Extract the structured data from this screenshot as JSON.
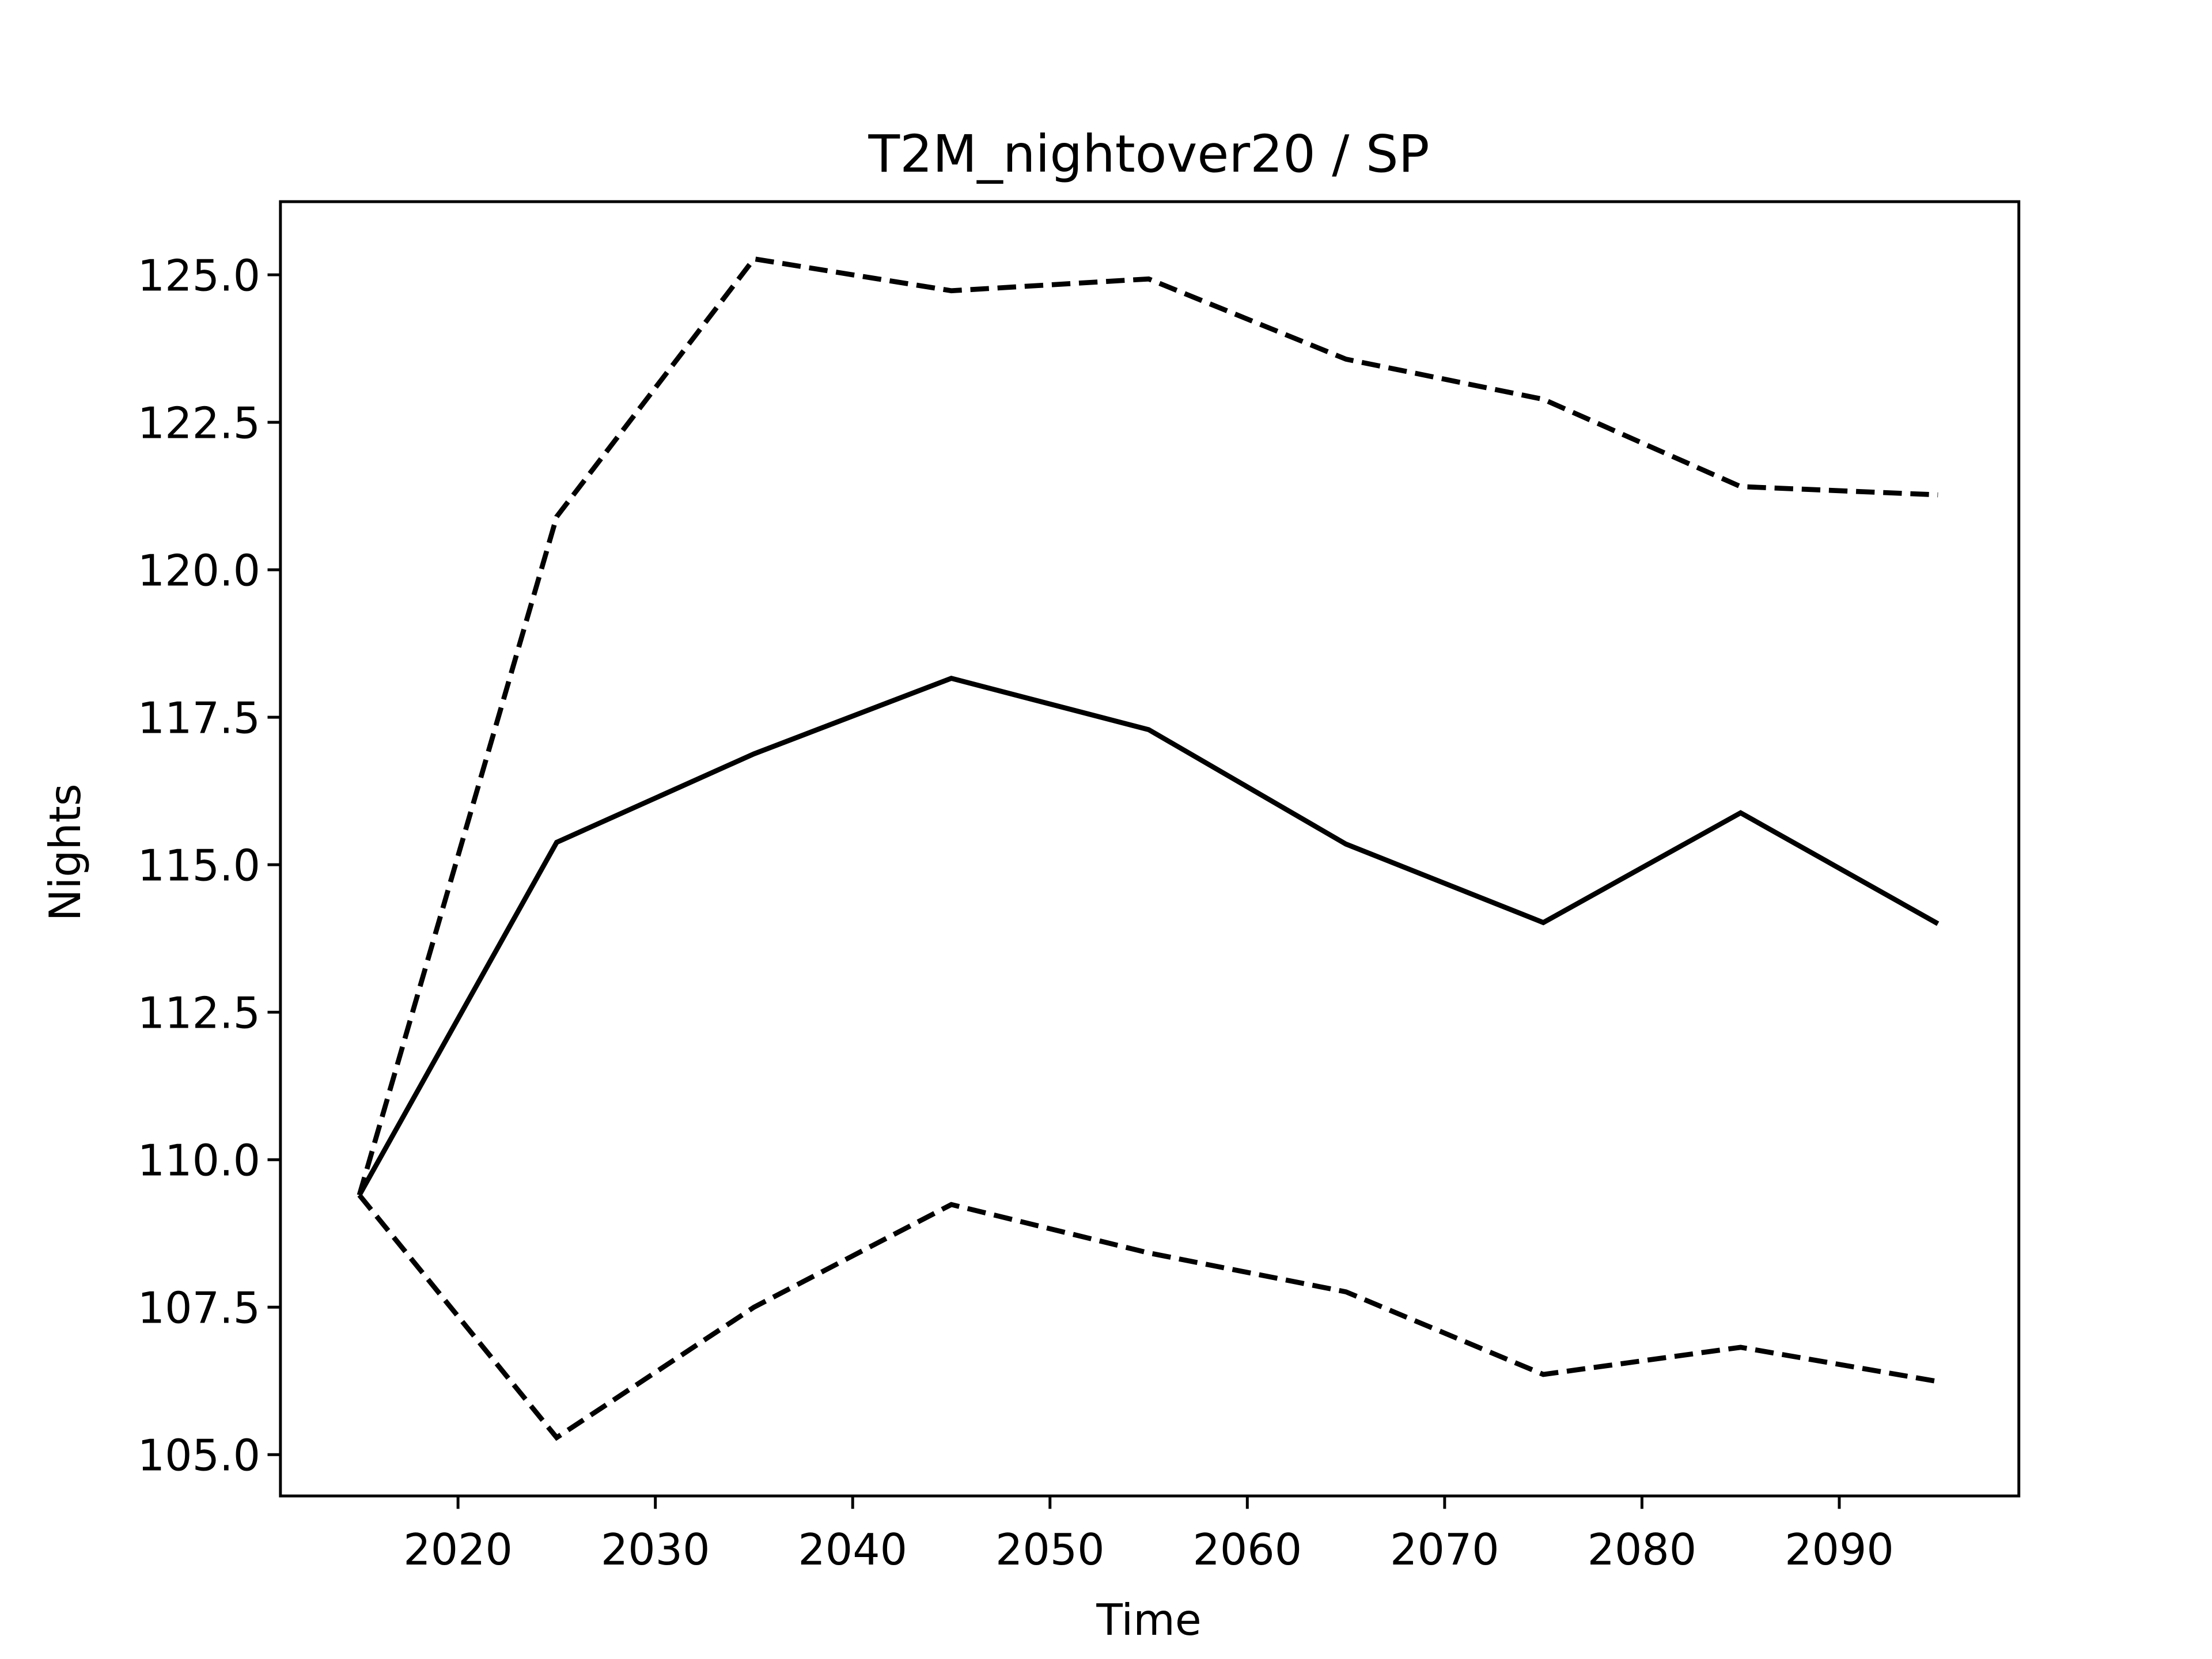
{
  "chart_data": {
    "type": "line",
    "title": "T2M_nightover20 / SP",
    "xlabel": "Time",
    "ylabel": "Nights",
    "x": [
      2015,
      2025,
      2035,
      2045,
      2055,
      2065,
      2075,
      2085,
      2095
    ],
    "series": [
      {
        "color": "#000000",
        "dashed": false,
        "values": [
          109.4,
          115.38,
          116.88,
          118.16,
          117.29,
          115.35,
          114.02,
          115.88,
          114.0
        ]
      },
      {
        "color": "#000000",
        "dashed": true,
        "values": [
          109.4,
          120.9,
          125.27,
          124.73,
          124.93,
          123.57,
          122.89,
          121.41,
          121.27
        ]
      },
      {
        "color": "#000000",
        "dashed": true,
        "values": [
          109.4,
          105.29,
          107.5,
          109.24,
          108.42,
          107.76,
          106.36,
          106.82,
          106.24
        ]
      }
    ],
    "xlim": [
      2011,
      2099.1
    ],
    "ylim": [
      104.3,
      126.24
    ],
    "xticks": [
      2020,
      2030,
      2040,
      2050,
      2060,
      2070,
      2080,
      2090
    ],
    "yticks": [
      {
        "value": 105,
        "label": "105.0"
      },
      {
        "value": 107.5,
        "label": "107.5"
      },
      {
        "value": 110,
        "label": "110.0"
      },
      {
        "value": 112.5,
        "label": "112.5"
      },
      {
        "value": 115,
        "label": "115.0"
      },
      {
        "value": 117.5,
        "label": "117.5"
      },
      {
        "value": 120,
        "label": "120.0"
      },
      {
        "value": 122.5,
        "label": "122.5"
      },
      {
        "value": 125,
        "label": "125.0"
      }
    ]
  }
}
